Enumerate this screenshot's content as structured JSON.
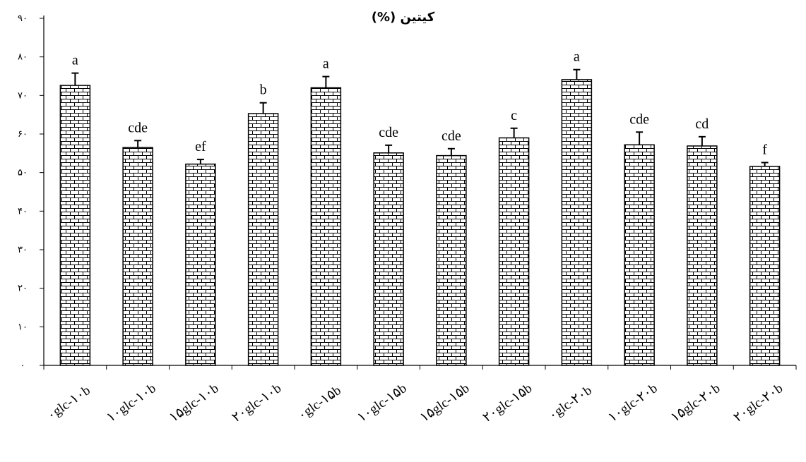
{
  "chart_data": {
    "type": "bar",
    "title": "کیتین (%)",
    "xlabel": "",
    "ylabel": "",
    "ylim": [
      0,
      90
    ],
    "yticks": [
      0,
      10,
      20,
      30,
      40,
      50,
      60,
      70,
      80,
      90
    ],
    "ytick_labels": [
      "۰",
      "۱۰",
      "۲۰",
      "۳۰",
      "۴۰",
      "۵۰",
      "۶۰",
      "۷۰",
      "۸۰",
      "۹۰"
    ],
    "categories": [
      "۰glc-۱۰b",
      "۱۰glc-۱۰b",
      "۱۵glc-۱۰b",
      "۲۰glc-۱۰b",
      "۰glc-۱۵b",
      "۱۰glc-۱۵b",
      "۱۵glc-۱۵b",
      "۲۰glc-۱۵b",
      "۰glc-۲۰b",
      "۱۰glc-۲۰b",
      "۱۵glc-۲۰b",
      "۲۰glc-۲۰b"
    ],
    "values": [
      72.6,
      56.5,
      52.2,
      65.3,
      72.0,
      55.1,
      54.4,
      59.0,
      74.1,
      57.2,
      56.9,
      51.6
    ],
    "errors": [
      3.2,
      1.8,
      1.2,
      2.8,
      2.9,
      2.0,
      1.8,
      2.5,
      2.6,
      3.3,
      2.4,
      1.0
    ],
    "letters": [
      "a",
      "cde",
      "ef",
      "b",
      "a",
      "cde",
      "cde",
      "c",
      "a",
      "cde",
      "cd",
      "f"
    ],
    "bar_pattern": "brick",
    "grid": false
  }
}
